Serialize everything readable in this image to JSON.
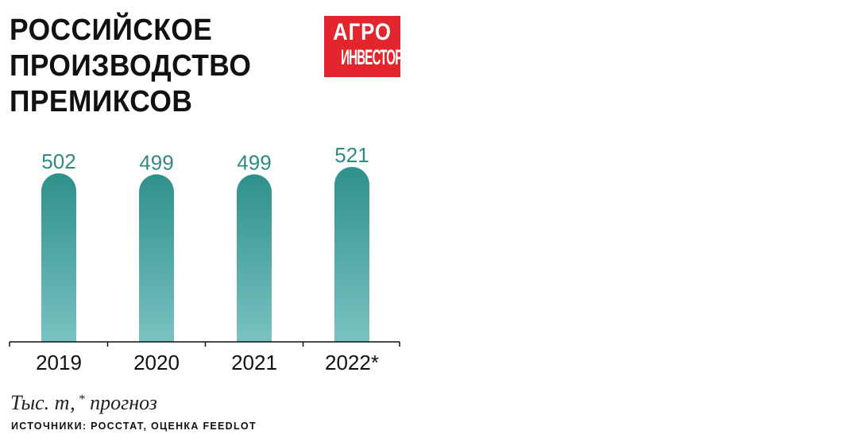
{
  "chart_data": {
    "type": "bar",
    "title": "РОССИЙСКОЕ ПРОИЗВОДСТВО ПРЕМИКСОВ",
    "categories": [
      "2019",
      "2020",
      "2021",
      "2022*"
    ],
    "values": [
      502,
      499,
      499,
      521
    ],
    "data_labels": [
      "502",
      "499",
      "499",
      "521"
    ],
    "ylim": [
      0,
      521
    ],
    "grid": false,
    "legend": "none",
    "note": "Тыс. т,",
    "note_footnote_mark": "*",
    "note_footnote_text": "прогноз",
    "sources": "ИСТОЧНИКИ: РОССТАТ, ОЦЕНКА FEEDLOT",
    "colors": {
      "bar_top": "#2f908a",
      "bar_bottom": "#79c2c2",
      "label": "#2f8a86",
      "axis": "#111111"
    }
  },
  "logo": {
    "line1": "АГРО",
    "line2": "ИНВЕСТОР",
    "color": "#e3252d"
  }
}
